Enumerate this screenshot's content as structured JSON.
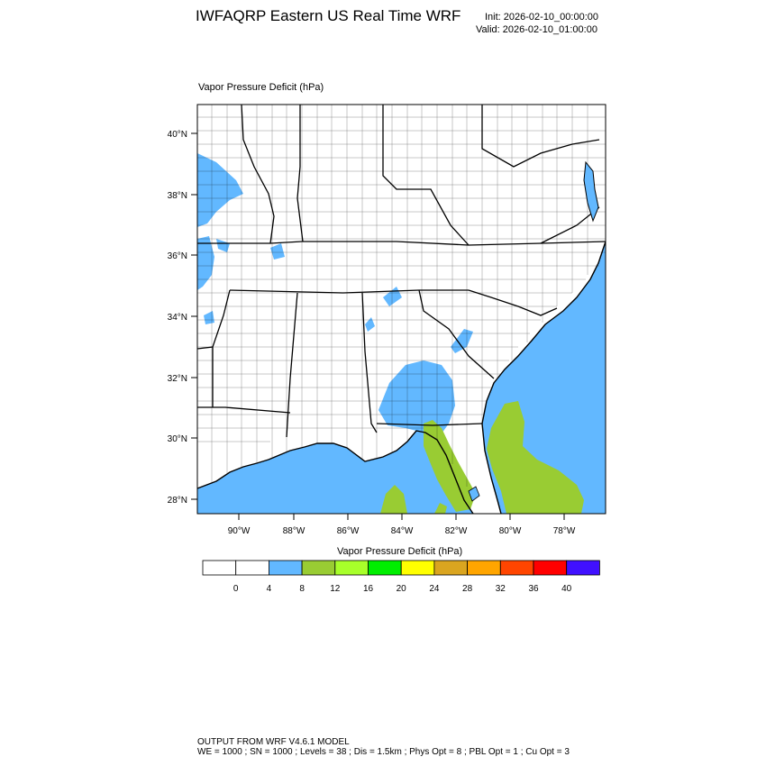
{
  "header": {
    "title": "IWFAQRP Eastern US Real Time WRF",
    "init": "Init: 2026-02-10_00:00:00",
    "valid": "Valid: 2026-02-10_01:00:00"
  },
  "field": {
    "title": "Vapor Pressure Deficit   (hPa)"
  },
  "map": {
    "lat_labels": [
      "40°N",
      "38°N",
      "36°N",
      "34°N",
      "32°N",
      "30°N",
      "28°N"
    ],
    "lon_labels": [
      "90°W",
      "88°W",
      "86°W",
      "84°W",
      "82°W",
      "80°W",
      "78°W"
    ],
    "ocean_color": "#62b8ff",
    "land_color": "#ffffff"
  },
  "colorbar": {
    "title": "Vapor Pressure Deficit  (hPa)",
    "levels": [
      "0",
      "4",
      "8",
      "12",
      "16",
      "20",
      "24",
      "28",
      "32",
      "36",
      "40"
    ],
    "colors": [
      "#ffffff",
      "#ffffff",
      "#62b8ff",
      "#99cc33",
      "#a8ff2a",
      "#00ee00",
      "#ffff00",
      "#daa520",
      "#ffa500",
      "#ff4500",
      "#ff0000",
      "#4010ff"
    ]
  },
  "footer": {
    "line1": "OUTPUT FROM WRF V4.6.1 MODEL",
    "line2": "WE = 1000 ; SN = 1000 ; Levels = 38 ; Dis = 1.5km ; Phys Opt = 8 ; PBL Opt = 1 ; Cu Opt = 3"
  }
}
